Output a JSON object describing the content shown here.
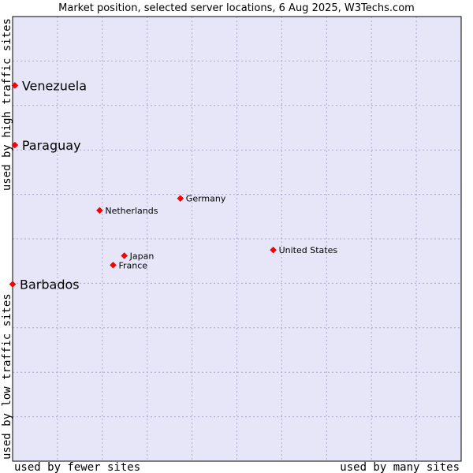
{
  "chart_data": {
    "type": "scatter",
    "title": "Market position, selected server locations, 6 Aug 2025, W3Techs.com",
    "xlabel_left": "used by fewer sites",
    "xlabel_right": "used by many sites",
    "ylabel_bottom": "used by low traffic sites",
    "ylabel_top": "used by high traffic sites",
    "xlim": [
      0,
      100
    ],
    "ylim": [
      0,
      100
    ],
    "grid": true,
    "colors": {
      "plot_bg": "#e6e6f8",
      "grid": "#aaaacc",
      "border": "#000000",
      "marker": "#ff0000",
      "marker_stroke": "#cc0000"
    },
    "points": [
      {
        "label": "Venezuela",
        "x": 0.5,
        "y": 84.5,
        "size": "large"
      },
      {
        "label": "Paraguay",
        "x": 0.5,
        "y": 71.1,
        "size": "large"
      },
      {
        "label": "Barbados",
        "x": 0.0,
        "y": 39.8,
        "size": "large"
      },
      {
        "label": "Germany",
        "x": 37.4,
        "y": 59.1,
        "size": "small"
      },
      {
        "label": "Netherlands",
        "x": 19.4,
        "y": 56.4,
        "size": "small"
      },
      {
        "label": "United States",
        "x": 58.1,
        "y": 47.5,
        "size": "small"
      },
      {
        "label": "Japan",
        "x": 24.9,
        "y": 46.2,
        "size": "small"
      },
      {
        "label": "France",
        "x": 22.4,
        "y": 44.1,
        "size": "small"
      }
    ]
  }
}
